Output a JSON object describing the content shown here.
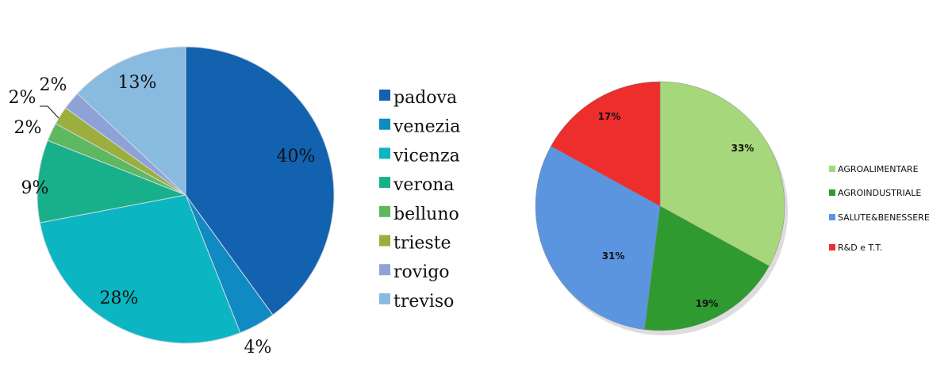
{
  "chart_data": [
    {
      "type": "pie",
      "start": "top",
      "direction": "clockwise",
      "categories": [
        "padova",
        "venezia",
        "vicenza",
        "verona",
        "belluno",
        "trieste",
        "rovigo",
        "treviso"
      ],
      "values": [
        40,
        4,
        28,
        9,
        2,
        2,
        2,
        13
      ],
      "labels": [
        "40%",
        "4%",
        "28%",
        "9%",
        "2%",
        "2%",
        "2%",
        "13%"
      ],
      "colors": [
        "#1262b0",
        "#0f8ac2",
        "#0cb5c2",
        "#18b08a",
        "#5db860",
        "#9cae3e",
        "#8fa2d8",
        "#89badf"
      ],
      "legend": "right"
    },
    {
      "type": "pie",
      "start": "top",
      "direction": "clockwise",
      "categories": [
        "AGROALIMENTARE",
        "AGROINDUSTRIALE",
        "SALUTE&BENESSERE",
        "R&D e T.T."
      ],
      "values": [
        33,
        19,
        31,
        17
      ],
      "labels": [
        "33%",
        "19%",
        "31%",
        "17%"
      ],
      "colors": [
        "#a6d77a",
        "#2e9a30",
        "#5b95e0",
        "#ee2d2d"
      ],
      "legend": "right"
    }
  ]
}
